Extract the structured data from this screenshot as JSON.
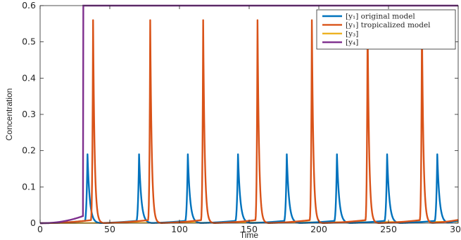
{
  "chart_data": {
    "type": "line",
    "title": "",
    "xlabel": "Time",
    "ylabel": "Concentration",
    "xlim": [
      0,
      300
    ],
    "ylim": [
      0,
      0.6
    ],
    "xticks": [
      0,
      50,
      100,
      150,
      200,
      250,
      300
    ],
    "xtick_labels": [
      "0",
      "50",
      "100",
      "150",
      "200",
      "250",
      "300"
    ],
    "yticks": [
      0,
      0.1,
      0.2,
      0.3,
      0.4,
      0.5,
      0.6
    ],
    "ytick_labels": [
      "0",
      "0.1",
      "0.2",
      "0.3",
      "0.4",
      "0.5",
      "0.6"
    ],
    "grid": false,
    "box": true,
    "legend_position": "top-right",
    "series": [
      {
        "name": "[y₁] original model",
        "color": "#0072BD",
        "peak_value": 0.19,
        "spike_times": [
          34,
          71,
          106,
          142,
          177,
          213,
          249,
          285
        ],
        "baseline_rise_to": 0.007
      },
      {
        "name": "[y₁] tropicalized model",
        "color": "#D95319",
        "peak_value": 0.56,
        "spike_times": [
          38,
          79,
          117,
          156,
          195,
          235,
          274
        ],
        "baseline_rise_to": 0.009
      },
      {
        "name": "[y₃]",
        "color": "#EDB120",
        "values_desc": "near zero, slowly increasing",
        "end_value": 0.004
      },
      {
        "name": "[y₄]",
        "color": "#7E2F8E",
        "step_time": 31,
        "plateau_value": 0.6
      }
    ]
  }
}
